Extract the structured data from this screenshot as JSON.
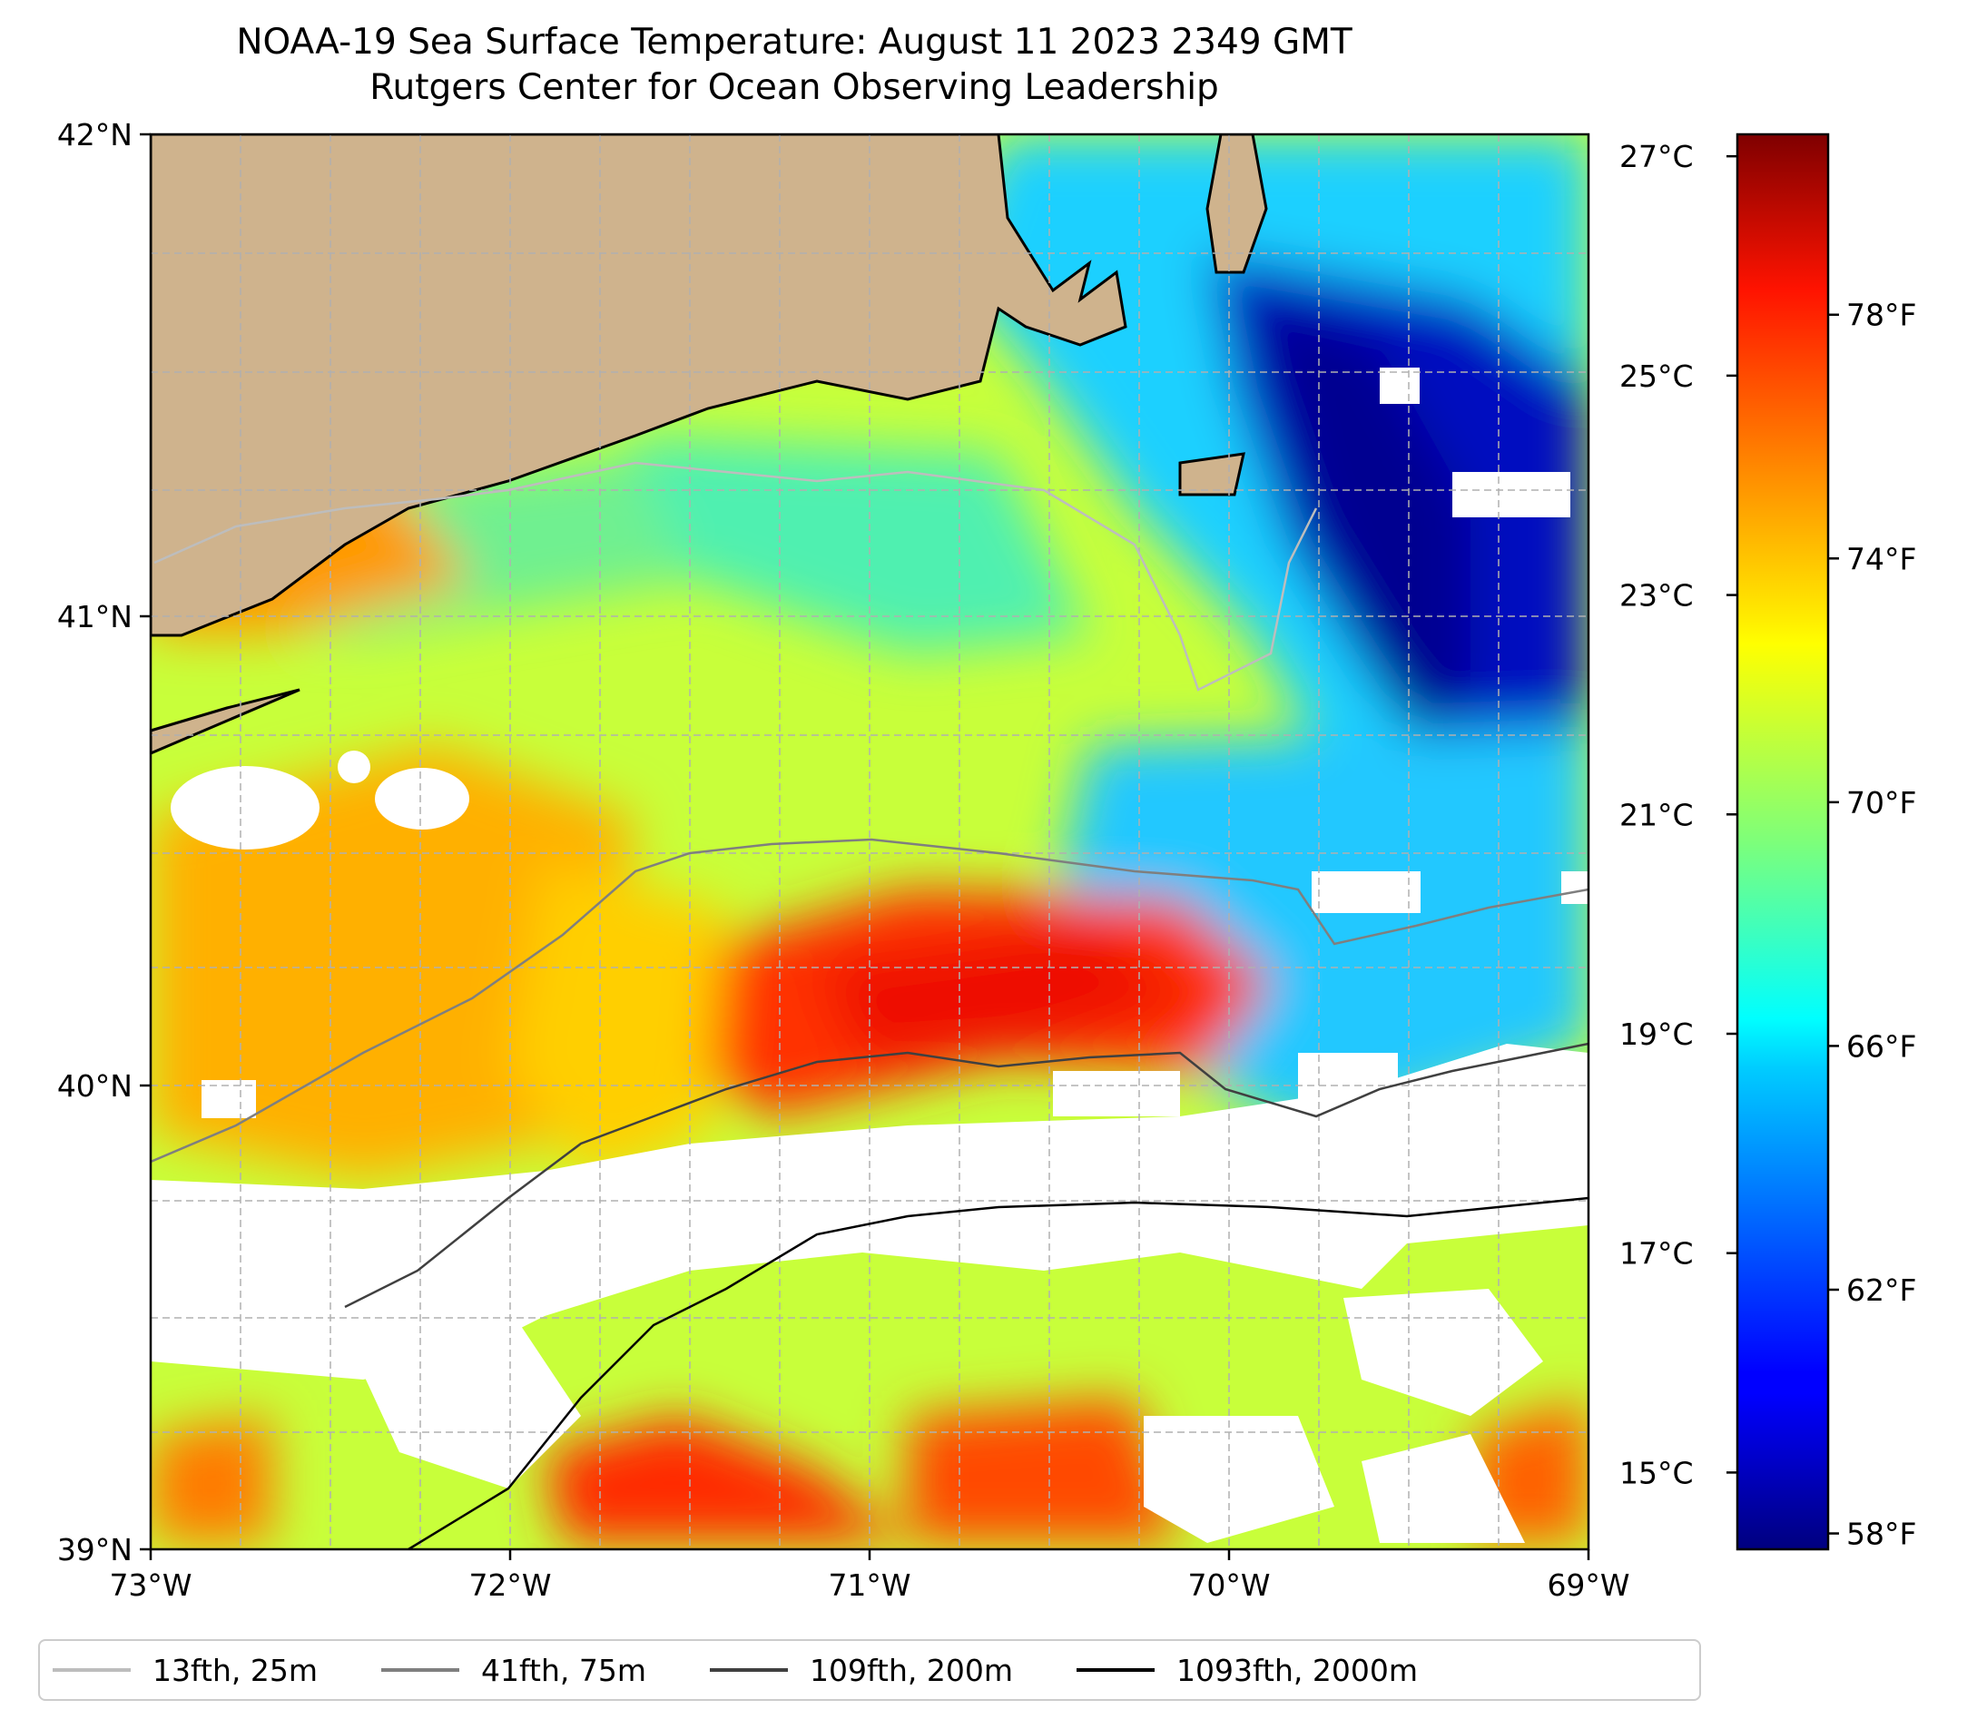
{
  "title": {
    "line1": "NOAA-19 Sea Surface Temperature: August 11 2023 2349 GMT",
    "line2": "Rutgers Center for Ocean Observing Leadership"
  },
  "map": {
    "lat_range": [
      39,
      42
    ],
    "lon_range": [
      -73,
      -69
    ],
    "lat_ticks": [
      "42°N",
      "41°N",
      "40°N",
      "39°N"
    ],
    "lon_ticks": [
      "73°W",
      "72°W",
      "71°W",
      "70°W",
      "69°W"
    ],
    "colors": {
      "land": "#cfb38d",
      "no_data": "#ffffff",
      "gridline": "#b0b0b0"
    }
  },
  "colorbar": {
    "celsius_ticks": [
      "27°C",
      "25°C",
      "23°C",
      "21°C",
      "19°C",
      "17°C",
      "15°C"
    ],
    "fahrenheit_ticks": [
      "78°F",
      "74°F",
      "70°F",
      "66°F",
      "62°F",
      "58°F"
    ],
    "colormap": "jet",
    "celsius_values": [
      27,
      25,
      23,
      21,
      19,
      17,
      15
    ],
    "fahrenheit_values": [
      78,
      74,
      70,
      66,
      62,
      58
    ],
    "range_c": [
      14.3,
      27.2
    ]
  },
  "legend": {
    "items": [
      {
        "label": "13fth, 25m",
        "color": "#bdbdbd"
      },
      {
        "label": "41fth, 75m",
        "color": "#7f7f7f"
      },
      {
        "label": "109fth, 200m",
        "color": "#404040"
      },
      {
        "label": "1093fth, 2000m",
        "color": "#000000"
      }
    ]
  }
}
